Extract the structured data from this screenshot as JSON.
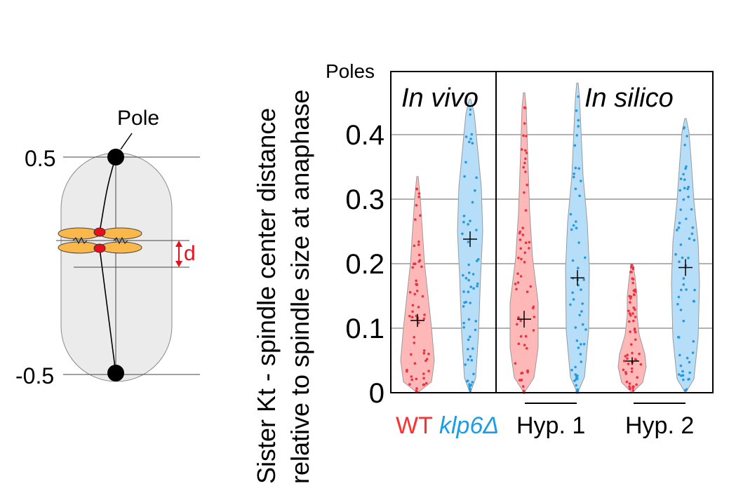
{
  "schematic": {
    "pole_label": "Pole",
    "top_value": "0.5",
    "bottom_value": "-0.5",
    "distance_label": "d"
  },
  "chart_data": {
    "type": "violin",
    "ylabel_line1": "Sister Kt - spindle center distance",
    "ylabel_line2": "relative to spindle size at anaphase",
    "ylim": [
      0,
      0.5
    ],
    "y_ticks": [
      "0",
      "0.1",
      "0.2",
      "0.3",
      "0.4"
    ],
    "y_top_label": "Poles",
    "grid": true,
    "panels": [
      {
        "title": "In vivo"
      },
      {
        "title": "In silico"
      }
    ],
    "groups": [
      {
        "label": "WT",
        "label_color": "#ff3030"
      },
      {
        "label": "klp6Δ",
        "label_color": "#1a9ee6"
      },
      {
        "label": "Hyp. 1",
        "label_color": "#000000"
      },
      {
        "label": "Hyp. 2",
        "label_color": "#000000"
      }
    ],
    "colors": {
      "wt_fill": "#ffb8b8",
      "wt_point": "#f03040",
      "mut_fill": "#b6def8",
      "mut_point": "#2598e0",
      "grid": "#999999"
    },
    "series": [
      {
        "condition": "WT",
        "color": "wt",
        "mean": 0.112,
        "mean_err": 0.01,
        "min": 0.0,
        "max": 0.335
      },
      {
        "condition": "klp6Δ",
        "color": "mut",
        "mean": 0.238,
        "mean_err": 0.012,
        "min": 0.0,
        "max": 0.455
      },
      {
        "condition": "Hyp. 1 WT",
        "color": "wt",
        "mean": 0.114,
        "mean_err": 0.013,
        "min": 0.0,
        "max": 0.465
      },
      {
        "condition": "Hyp. 1 klp6Δ",
        "color": "mut",
        "mean": 0.178,
        "mean_err": 0.012,
        "min": 0.0,
        "max": 0.48
      },
      {
        "condition": "Hyp. 2 WT",
        "color": "wt",
        "mean": 0.049,
        "mean_err": 0.006,
        "min": 0.0,
        "max": 0.2
      },
      {
        "condition": "Hyp. 2 klp6Δ",
        "color": "mut",
        "mean": 0.194,
        "mean_err": 0.013,
        "min": 0.0,
        "max": 0.425
      }
    ]
  }
}
